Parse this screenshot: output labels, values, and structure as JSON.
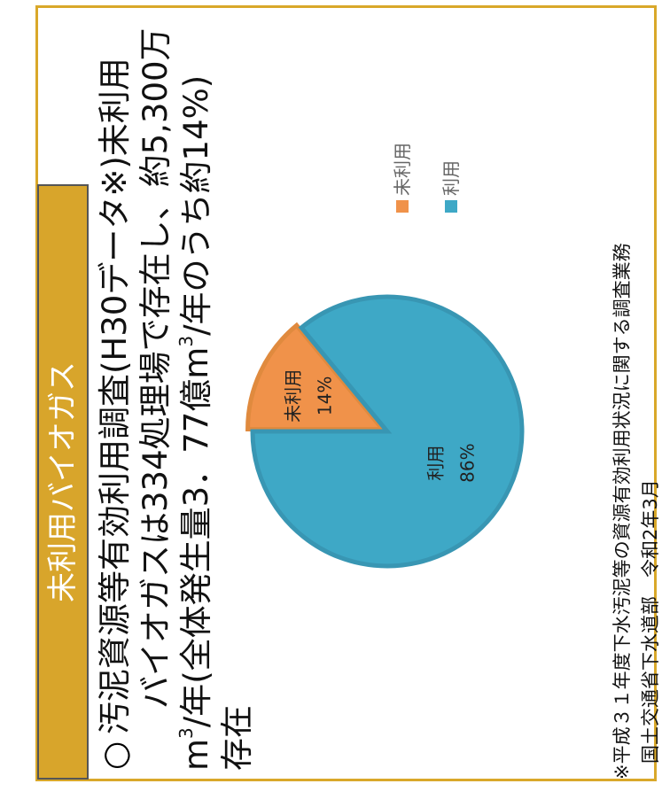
{
  "title": "未利用バイオガス",
  "body": {
    "bullet": "○",
    "lines": [
      [
        {
          "t": "汚泥資源等有効利用調査(H30データ※)未利用"
        }
      ],
      [
        {
          "t": "バイオガスは334処理場で存在し、約5,300万"
        }
      ],
      [
        {
          "t": "m"
        },
        {
          "t": "3",
          "sup": true
        },
        {
          "t": "/年(全体発生量3．77億m"
        },
        {
          "t": "3",
          "sup": true
        },
        {
          "t": "/年のうち約14%)"
        }
      ],
      [
        {
          "t": "存在"
        }
      ]
    ]
  },
  "chart_data": {
    "type": "pie",
    "categories": [
      "未利用",
      "利用"
    ],
    "values": [
      14,
      86
    ],
    "value_labels": [
      "14%",
      "86%"
    ],
    "colors": [
      "#f0924a",
      "#3ea8c6"
    ]
  },
  "footnote": [
    "※平成３１年度下水汚泥等の資源有効利用状況に関する調査業務",
    "国土交通省下水道部　令和2年3月"
  ]
}
